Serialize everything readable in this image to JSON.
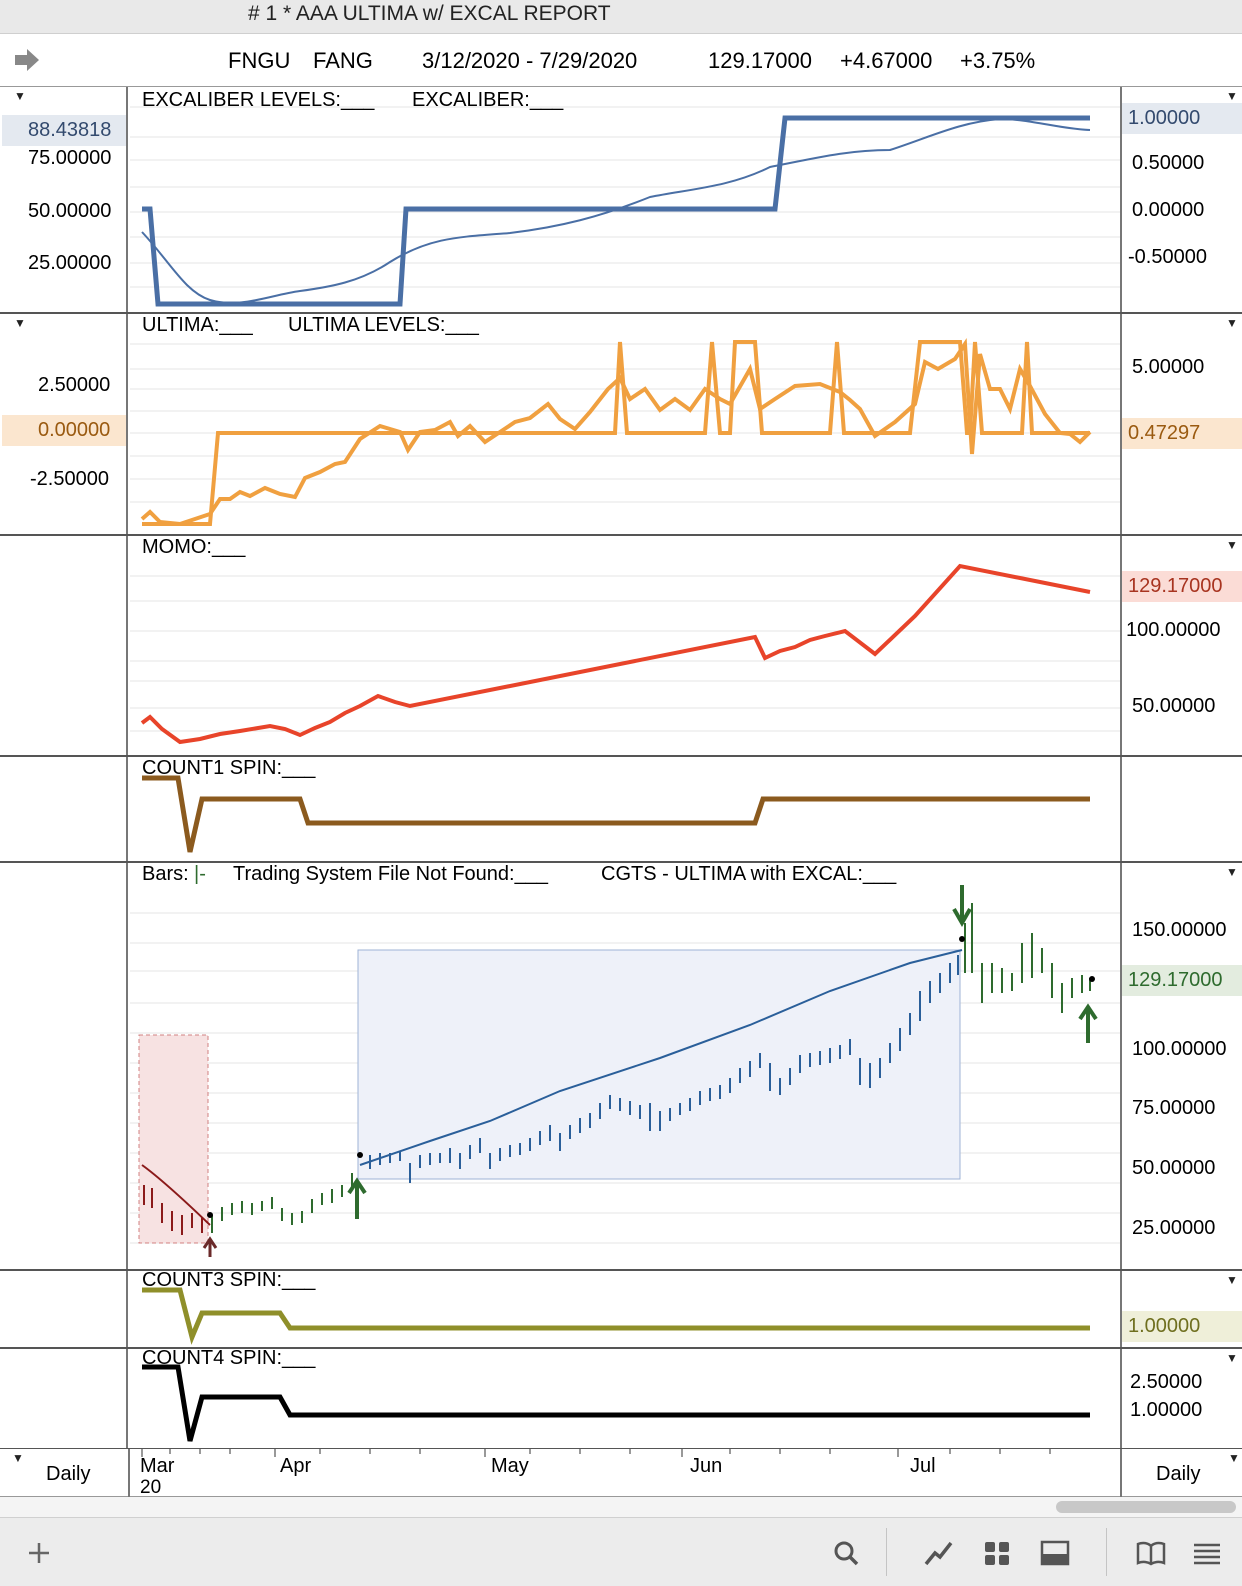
{
  "window": {
    "title": "#  1 * AAA ULTIMA w/ EXCAL REPORT"
  },
  "header": {
    "symbol": "FNGU",
    "name": "FANG",
    "date_range": "3/12/2020 - 7/29/2020",
    "price": "129.17000",
    "change": "+4.67000",
    "change_pct": "+3.75%"
  },
  "panes": {
    "excal": {
      "legend1": "EXCALIBER LEVELS:___",
      "legend2": "EXCALIBER:___",
      "left_value": "88.43818",
      "left_ticks": [
        "75.00000",
        "50.00000",
        "25.00000"
      ],
      "right_value": "1.00000",
      "right_ticks": [
        "0.50000",
        "0.00000",
        "-0.50000"
      ]
    },
    "ultima": {
      "legend1": "ULTIMA:___",
      "legend2": "ULTIMA LEVELS:___",
      "left_value": "0.00000",
      "left_ticks": [
        "2.50000",
        "-2.50000"
      ],
      "right_value": "0.47297",
      "right_ticks": [
        "5.00000"
      ]
    },
    "momo": {
      "legend": "MOMO:___",
      "right_value": "129.17000",
      "right_ticks": [
        "100.00000",
        "50.00000"
      ]
    },
    "count1": {
      "legend": "COUNT1 SPIN:___"
    },
    "bars": {
      "legend1": "Bars:",
      "legend1_glyph": "|-",
      "legend2": "Trading System File Not Found:___",
      "legend3": "CGTS - ULTIMA with EXCAL:___",
      "right_value": "129.17000",
      "right_ticks": [
        "150.00000",
        "100.00000",
        "75.00000",
        "50.00000",
        "25.00000"
      ]
    },
    "count3": {
      "legend": "COUNT3 SPIN:___",
      "right_value": "1.00000"
    },
    "count4": {
      "legend": "COUNT4 SPIN:___",
      "right_ticks": [
        "2.50000"
      ],
      "right_value": "1.00000"
    }
  },
  "xaxis": {
    "months": [
      "Mar",
      "Apr",
      "May",
      "Jun",
      "Jul"
    ],
    "year": "20",
    "left_period": "Daily",
    "right_period": "Daily"
  },
  "colors": {
    "excal": "#4a6fa5",
    "ultima": "#f0a040",
    "momo": "#e8442a",
    "count1": "#8b5a1e",
    "count3": "#8f8f2a",
    "count4": "#000000",
    "bar_red": "#8b1a1a",
    "bar_green": "#2e6b2e",
    "bar_blue": "#2a5f9a"
  },
  "toolbar": {
    "icons": [
      "add-icon",
      "search-icon",
      "line-chart-icon",
      "grid-icon",
      "panel-icon",
      "book-icon",
      "list-icon"
    ]
  }
}
